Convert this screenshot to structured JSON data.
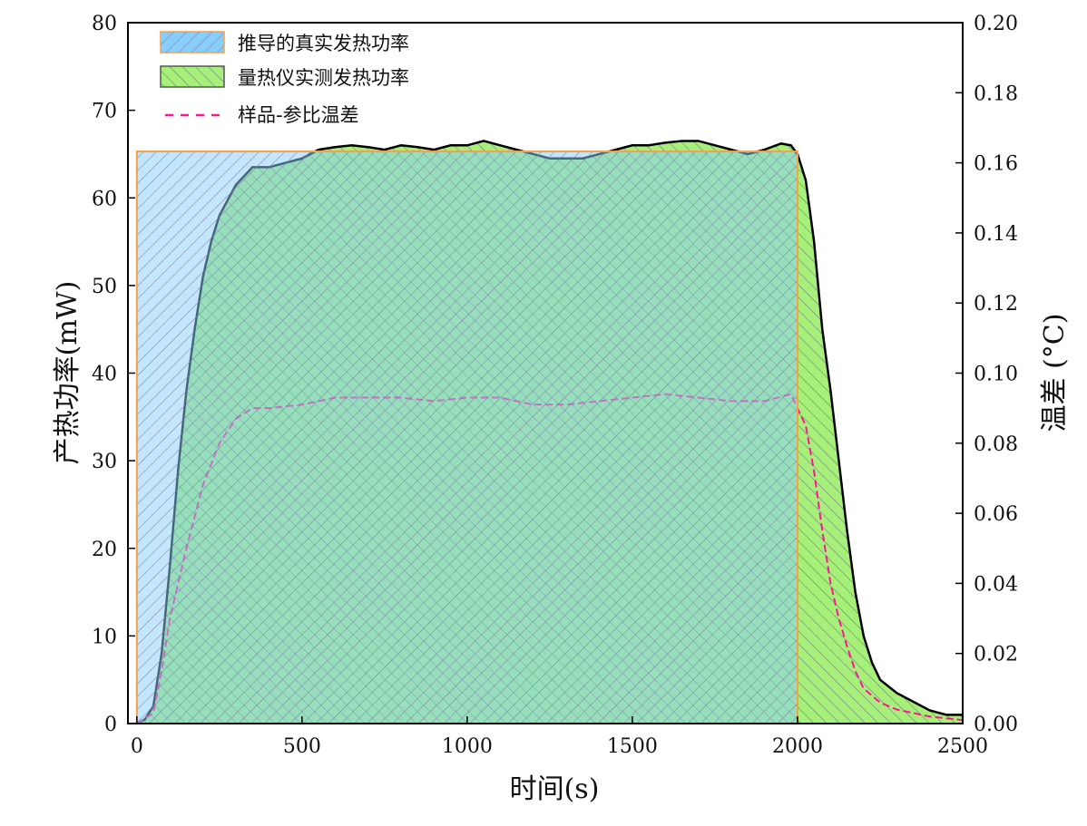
{
  "chart_data": {
    "type": "area",
    "xlabel": "时间(s)",
    "ylabel": "产热功率(mW)",
    "ylabel_right": "温差 (°C)",
    "xlim": [
      -27,
      2500
    ],
    "ylim": [
      0,
      80
    ],
    "ylim_right": [
      0,
      0.2
    ],
    "xticks": [
      0,
      500,
      1000,
      1500,
      2000,
      2500
    ],
    "yticks": [
      0,
      10,
      20,
      30,
      40,
      50,
      60,
      70,
      80
    ],
    "yticks_right": [
      "0.00",
      "0.02",
      "0.04",
      "0.06",
      "0.08",
      "0.10",
      "0.12",
      "0.14",
      "0.16",
      "0.18",
      "0.20"
    ],
    "grid": false,
    "legend": "top-left",
    "colors": {
      "derived": "#87cefa",
      "derived_edge": "#f5a04a",
      "measured": "#a6f07a",
      "measured_line": "#000000",
      "temp": "#ff1493"
    },
    "series": [
      {
        "name": "推导的真实发热功率",
        "type": "step-area",
        "x": [
          0,
          2000
        ],
        "y": [
          65.3,
          65.3
        ]
      },
      {
        "name": "量热仪实测发热功率",
        "type": "area",
        "x": [
          0,
          25,
          50,
          75,
          100,
          125,
          150,
          175,
          200,
          225,
          250,
          300,
          350,
          400,
          450,
          500,
          550,
          600,
          650,
          700,
          750,
          800,
          850,
          900,
          950,
          1000,
          1050,
          1100,
          1150,
          1200,
          1250,
          1300,
          1350,
          1400,
          1450,
          1500,
          1550,
          1600,
          1650,
          1700,
          1750,
          1800,
          1850,
          1900,
          1950,
          1980,
          2000,
          2025,
          2050,
          2075,
          2100,
          2125,
          2150,
          2175,
          2200,
          2225,
          2250,
          2300,
          2350,
          2400,
          2450,
          2500
        ],
        "y": [
          0,
          0.5,
          2,
          8,
          18,
          29,
          38,
          45,
          51,
          55,
          58,
          61.5,
          63.5,
          63.5,
          64,
          64.5,
          65.5,
          65.8,
          66,
          65.8,
          65.5,
          66,
          65.8,
          65.5,
          66,
          66,
          66.5,
          66,
          65.5,
          65,
          64.5,
          64.5,
          64.5,
          65,
          65.5,
          66,
          66,
          66.3,
          66.5,
          66.5,
          66,
          65.5,
          65,
          65.5,
          66.2,
          66,
          65,
          62,
          55,
          45,
          38,
          30,
          22,
          15,
          10,
          7,
          5,
          3.5,
          2.5,
          1.5,
          1,
          1
        ]
      },
      {
        "name": "样品-参比温差",
        "type": "line",
        "axis": "right",
        "x": [
          0,
          50,
          75,
          100,
          150,
          200,
          250,
          300,
          350,
          400,
          500,
          600,
          700,
          800,
          900,
          1000,
          1100,
          1200,
          1300,
          1400,
          1500,
          1600,
          1700,
          1800,
          1900,
          1980,
          2000,
          2025,
          2050,
          2075,
          2100,
          2125,
          2150,
          2175,
          2200,
          2250,
          2300,
          2400,
          2500
        ],
        "y": [
          0,
          0.003,
          0.015,
          0.03,
          0.05,
          0.068,
          0.08,
          0.087,
          0.09,
          0.09,
          0.091,
          0.093,
          0.093,
          0.093,
          0.092,
          0.093,
          0.093,
          0.091,
          0.091,
          0.092,
          0.093,
          0.094,
          0.093,
          0.092,
          0.092,
          0.094,
          0.09,
          0.085,
          0.072,
          0.055,
          0.04,
          0.03,
          0.022,
          0.015,
          0.01,
          0.006,
          0.004,
          0.002,
          0.001
        ]
      }
    ]
  }
}
